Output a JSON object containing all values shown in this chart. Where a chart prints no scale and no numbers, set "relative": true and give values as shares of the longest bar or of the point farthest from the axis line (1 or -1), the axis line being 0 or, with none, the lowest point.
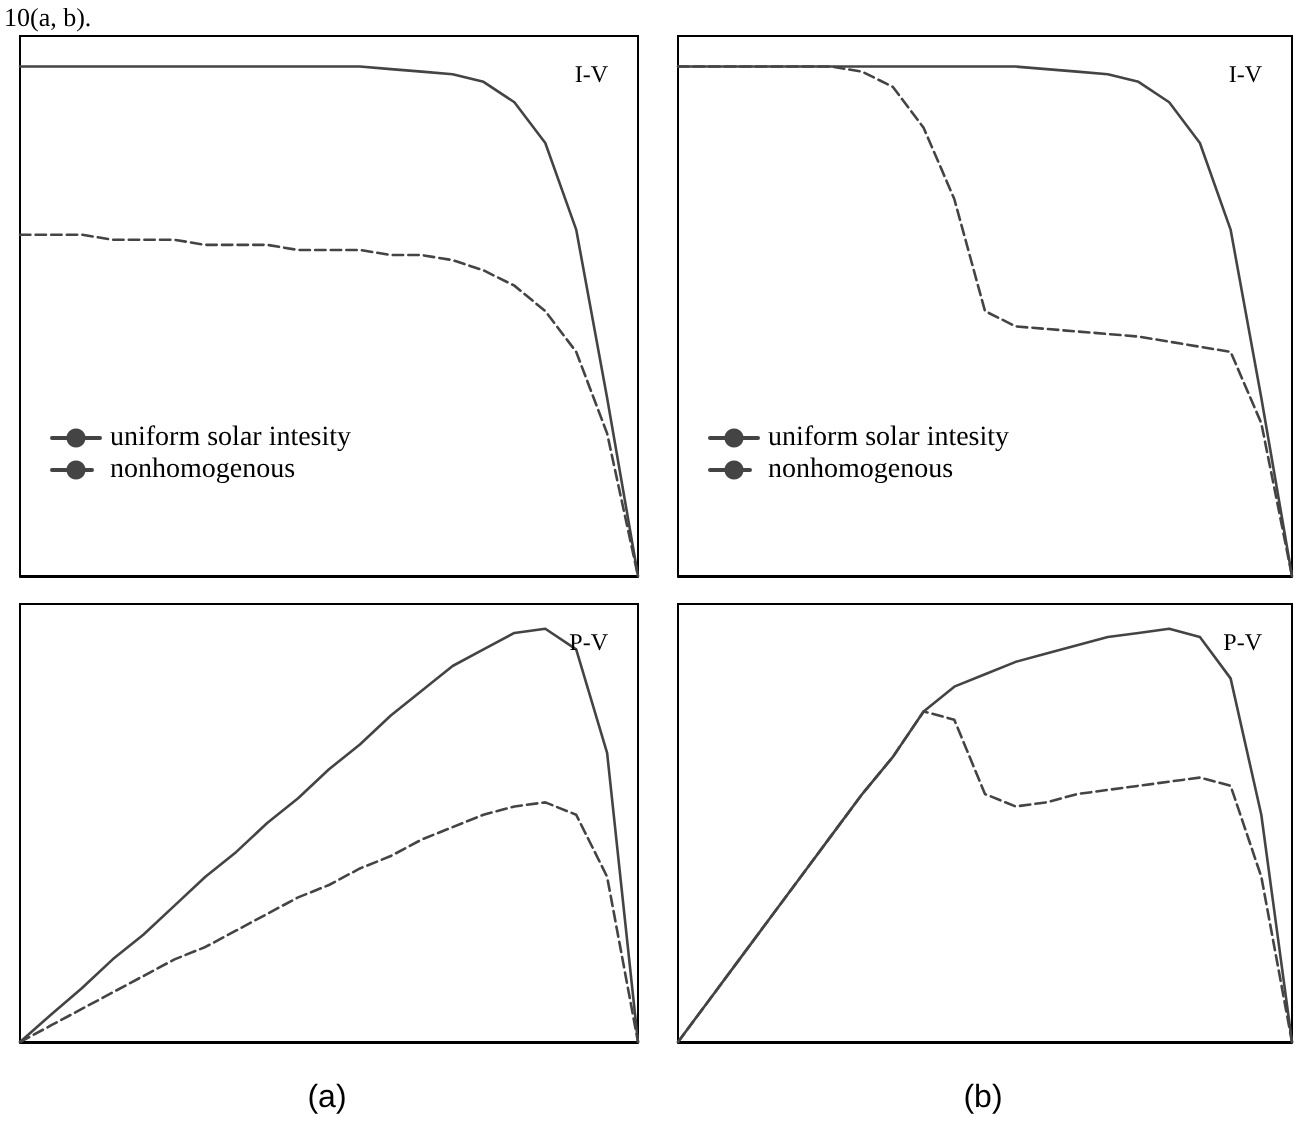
{
  "chart_data": [
    {
      "type": "line",
      "title": "I-V",
      "relative": true,
      "legend": "bottom left",
      "marker": "none",
      "annotations": [
        "10(a, b)."
      ],
      "categories": [
        null,
        null,
        null,
        null,
        null,
        null,
        null,
        null,
        null,
        null,
        null,
        null,
        null,
        null,
        null,
        null,
        null,
        null,
        null,
        null,
        null
      ],
      "series": [
        {
          "name": "uniform solar intesity",
          "color": "#444444",
          "line_style": "solid",
          "values": [
            1,
            1,
            1,
            1,
            1,
            1,
            1,
            1,
            1,
            1,
            1,
            1,
            0.995,
            0.99,
            0.985,
            0.97,
            0.93,
            0.85,
            0.68,
            0.35,
            0
          ]
        },
        {
          "name": "nonhomogenous",
          "color": "#444444",
          "line_style": "dashed",
          "values": [
            0.67,
            0.67,
            0.67,
            0.66,
            0.66,
            0.66,
            0.65,
            0.65,
            0.65,
            0.64,
            0.64,
            0.64,
            0.63,
            0.63,
            0.62,
            0.6,
            0.57,
            0.52,
            0.44,
            0.28,
            0
          ]
        }
      ]
    },
    {
      "type": "line",
      "title": "I-V",
      "relative": true,
      "legend": "bottom left",
      "marker": "none",
      "categories": [
        null,
        null,
        null,
        null,
        null,
        null,
        null,
        null,
        null,
        null,
        null,
        null,
        null,
        null,
        null,
        null,
        null,
        null,
        null,
        null,
        null
      ],
      "series": [
        {
          "name": "uniform solar intesity",
          "color": "#444444",
          "line_style": "solid",
          "values": [
            1,
            1,
            1,
            1,
            1,
            1,
            1,
            1,
            1,
            1,
            1,
            1,
            0.995,
            0.99,
            0.985,
            0.97,
            0.93,
            0.85,
            0.68,
            0.35,
            0
          ]
        },
        {
          "name": "nonhomogenous",
          "color": "#444444",
          "line_style": "dashed",
          "values": [
            1,
            1,
            1,
            1,
            1,
            1,
            0.99,
            0.96,
            0.88,
            0.74,
            0.52,
            0.49,
            0.485,
            0.48,
            0.475,
            0.47,
            0.46,
            0.45,
            0.44,
            0.3,
            0
          ]
        }
      ]
    },
    {
      "type": "line",
      "title": "P-V",
      "relative": true,
      "legend": false,
      "marker": "none",
      "annotations": [
        "(a)"
      ],
      "categories": [
        null,
        null,
        null,
        null,
        null,
        null,
        null,
        null,
        null,
        null,
        null,
        null,
        null,
        null,
        null,
        null,
        null,
        null,
        null,
        null,
        null
      ],
      "series": [
        {
          "color": "#444444",
          "line_style": "solid",
          "values": [
            0,
            0.066,
            0.13,
            0.2,
            0.26,
            0.33,
            0.4,
            0.46,
            0.53,
            0.59,
            0.66,
            0.72,
            0.79,
            0.85,
            0.91,
            0.95,
            0.99,
            1,
            0.95,
            0.7,
            0
          ]
        },
        {
          "color": "#444444",
          "line_style": "dashed",
          "values": [
            0,
            0.04,
            0.08,
            0.12,
            0.16,
            0.2,
            0.23,
            0.27,
            0.31,
            0.35,
            0.38,
            0.42,
            0.45,
            0.49,
            0.52,
            0.55,
            0.57,
            0.58,
            0.55,
            0.4,
            0
          ]
        }
      ]
    },
    {
      "type": "line",
      "title": "P-V",
      "relative": true,
      "legend": false,
      "marker": "none",
      "annotations": [
        "(b)"
      ],
      "categories": [
        null,
        null,
        null,
        null,
        null,
        null,
        null,
        null,
        null,
        null,
        null,
        null,
        null,
        null,
        null,
        null,
        null,
        null,
        null,
        null,
        null
      ],
      "series": [
        {
          "color": "#444444",
          "line_style": "solid",
          "values": [
            0,
            0.1,
            0.2,
            0.3,
            0.4,
            0.5,
            0.6,
            0.69,
            0.8,
            0.86,
            0.89,
            0.92,
            0.94,
            0.96,
            0.98,
            0.99,
            1,
            0.98,
            0.88,
            0.55,
            0
          ]
        },
        {
          "color": "#444444",
          "line_style": "dashed",
          "values": [
            0,
            0.1,
            0.2,
            0.3,
            0.4,
            0.5,
            0.6,
            0.69,
            0.8,
            0.78,
            0.6,
            0.57,
            0.58,
            0.6,
            0.61,
            0.62,
            0.63,
            0.64,
            0.62,
            0.4,
            0
          ]
        }
      ]
    }
  ]
}
